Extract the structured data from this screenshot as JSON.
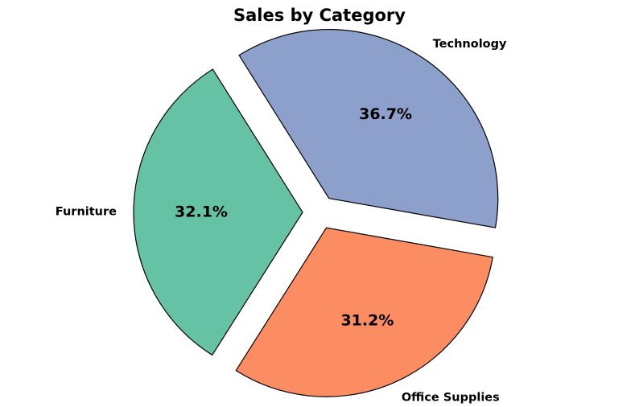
{
  "chart_data": {
    "type": "pie",
    "title": "Sales by Category",
    "slices": [
      {
        "label": "Technology",
        "percent": 36.7,
        "percent_label": "36.7%",
        "color": "#8DA0CB",
        "exploded": true
      },
      {
        "label": "Furniture",
        "percent": 32.1,
        "percent_label": "32.1%",
        "color": "#66C2A5",
        "exploded": true
      },
      {
        "label": "Office Supplies",
        "percent": 31.2,
        "percent_label": "31.2%",
        "color": "#FC8D62",
        "exploded": true
      }
    ],
    "start_angle": -10,
    "direction": "counterclockwise",
    "edge_color": "#000000",
    "legend": false
  }
}
